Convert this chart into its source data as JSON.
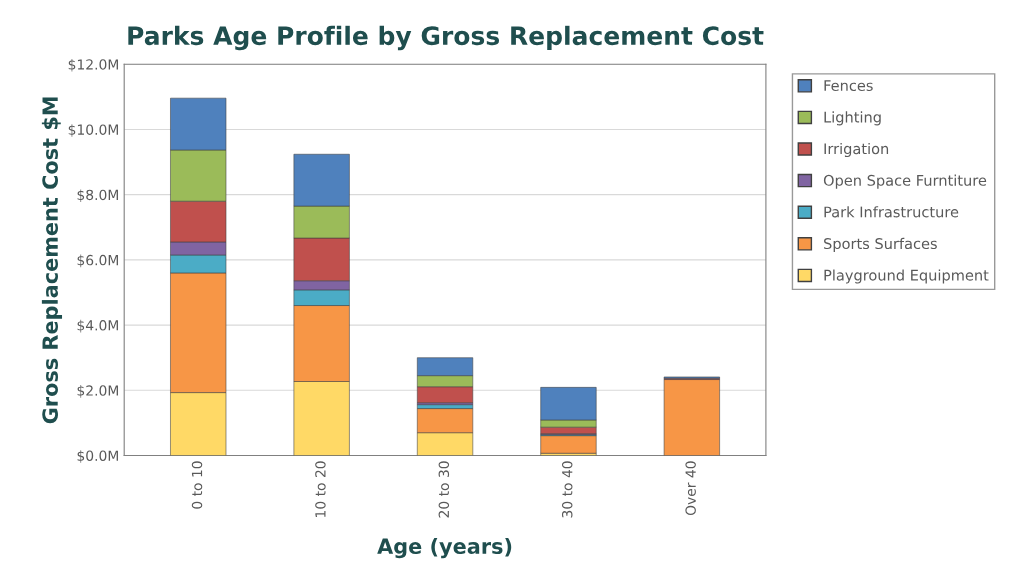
{
  "chart_data": {
    "type": "bar",
    "stacked": true,
    "title": "Parks Age Profile by Gross Replacement Cost",
    "xlabel": "Age (years)",
    "ylabel": "Gross Replacement Cost $M",
    "categories": [
      "0 to 10",
      "10 to 20",
      "20 to 30",
      "30 to 40",
      "Over 40"
    ],
    "series": [
      {
        "name": "Playground Equipment",
        "color": "#ffd966",
        "values": [
          1.93,
          2.27,
          0.7,
          0.07,
          0
        ]
      },
      {
        "name": "Sports Surfaces",
        "color": "#f79646",
        "values": [
          3.67,
          2.33,
          0.74,
          0.54,
          2.33
        ]
      },
      {
        "name": "Park Infrastructure",
        "color": "#4bacc6",
        "values": [
          0.55,
          0.48,
          0.12,
          0.03,
          0
        ]
      },
      {
        "name": "Open Space Furntiture",
        "color": "#8064a2",
        "values": [
          0.4,
          0.28,
          0.06,
          0.03,
          0
        ]
      },
      {
        "name": "Irrigation",
        "color": "#c0504d",
        "values": [
          1.25,
          1.31,
          0.49,
          0.2,
          0.04
        ]
      },
      {
        "name": "Lighting",
        "color": "#9bbb59",
        "values": [
          1.57,
          0.98,
          0.34,
          0.22,
          0
        ]
      },
      {
        "name": "Fences",
        "color": "#4f81bd",
        "values": [
          1.59,
          1.59,
          0.55,
          1.0,
          0.04
        ]
      }
    ],
    "ylim": [
      0,
      12
    ],
    "yticks": [
      {
        "value": 0,
        "label": "$0.0M"
      },
      {
        "value": 2,
        "label": "$2.0M"
      },
      {
        "value": 4,
        "label": "$4.0M"
      },
      {
        "value": 6,
        "label": "$6.0M"
      },
      {
        "value": 8,
        "label": "$8.0M"
      },
      {
        "value": 10,
        "label": "$10.0M"
      },
      {
        "value": 12,
        "label": "$12.0M"
      }
    ],
    "grid": "y",
    "legend": "right"
  }
}
